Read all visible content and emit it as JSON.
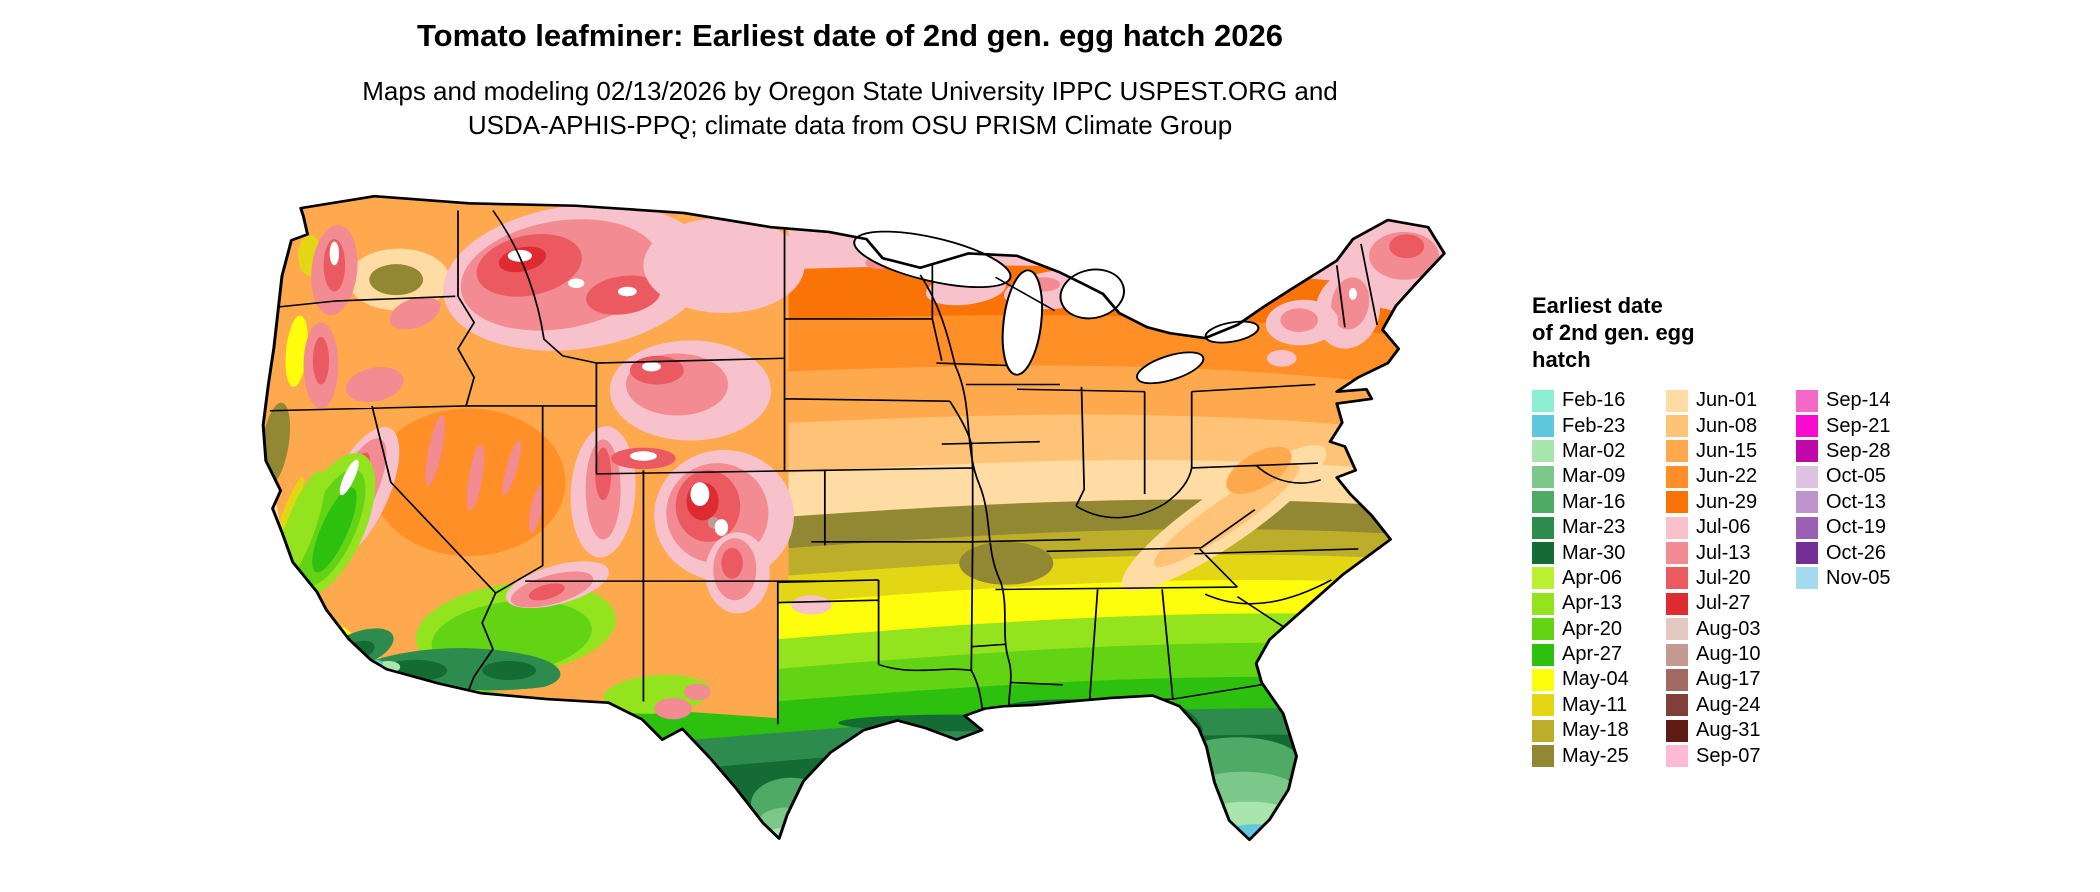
{
  "title": "Tomato leafminer: Earliest date of 2nd gen. egg hatch 2026",
  "subtitle": "Maps and modeling 02/13/2026 by Oregon State University IPPC USPEST.ORG and\nUSDA-APHIS-PPQ; climate data from OSU PRISM Climate Group",
  "legend": {
    "title": "Earliest date\nof 2nd gen. egg\nhatch",
    "columns": [
      [
        {
          "label": "Feb-16",
          "color": "#8EEED4"
        },
        {
          "label": "Feb-23",
          "color": "#5FC8DC"
        },
        {
          "label": "Mar-02",
          "color": "#A8E6AE"
        },
        {
          "label": "Mar-09",
          "color": "#7CC88A"
        },
        {
          "label": "Mar-16",
          "color": "#4FAA66"
        },
        {
          "label": "Mar-23",
          "color": "#2E8B4E"
        },
        {
          "label": "Mar-30",
          "color": "#146B34"
        },
        {
          "label": "Apr-06",
          "color": "#BCF032"
        },
        {
          "label": "Apr-13",
          "color": "#93E41E"
        },
        {
          "label": "Apr-20",
          "color": "#63D414"
        },
        {
          "label": "Apr-27",
          "color": "#2EC00E"
        },
        {
          "label": "May-04",
          "color": "#FDFD0C"
        },
        {
          "label": "May-11",
          "color": "#E3D614"
        },
        {
          "label": "May-18",
          "color": "#BCAE2A"
        },
        {
          "label": "May-25",
          "color": "#928732"
        }
      ],
      [
        {
          "label": "Jun-01",
          "color": "#FFDCA4"
        },
        {
          "label": "Jun-08",
          "color": "#FFC377"
        },
        {
          "label": "Jun-15",
          "color": "#FFA94E"
        },
        {
          "label": "Jun-22",
          "color": "#FF8F26"
        },
        {
          "label": "Jun-29",
          "color": "#F97306"
        },
        {
          "label": "Jul-06",
          "color": "#F7C2CC"
        },
        {
          "label": "Jul-13",
          "color": "#F28B92"
        },
        {
          "label": "Jul-20",
          "color": "#EB5A60"
        },
        {
          "label": "Jul-27",
          "color": "#DE2A31"
        },
        {
          "label": "Aug-03",
          "color": "#E4C8C2"
        },
        {
          "label": "Aug-10",
          "color": "#C49A92"
        },
        {
          "label": "Aug-17",
          "color": "#A06A62"
        },
        {
          "label": "Aug-24",
          "color": "#7E4038"
        },
        {
          "label": "Aug-31",
          "color": "#5E1B14"
        },
        {
          "label": "Sep-07",
          "color": "#FFBBD4"
        }
      ],
      [
        {
          "label": "Sep-14",
          "color": "#F468C8"
        },
        {
          "label": "Sep-21",
          "color": "#FA0ACE"
        },
        {
          "label": "Sep-28",
          "color": "#C008A8"
        },
        {
          "label": "Oct-05",
          "color": "#DEC2E2"
        },
        {
          "label": "Oct-13",
          "color": "#BE94CC"
        },
        {
          "label": "Oct-19",
          "color": "#9A60B4"
        },
        {
          "label": "Oct-26",
          "color": "#742E96"
        },
        {
          "label": "Nov-05",
          "color": "#A6DAEE"
        }
      ]
    ]
  },
  "map": {
    "region": "Conterminous United States",
    "no_data_color": "#FFFFFF",
    "border_color": "#000000",
    "water_color": "#FFFFFF"
  }
}
